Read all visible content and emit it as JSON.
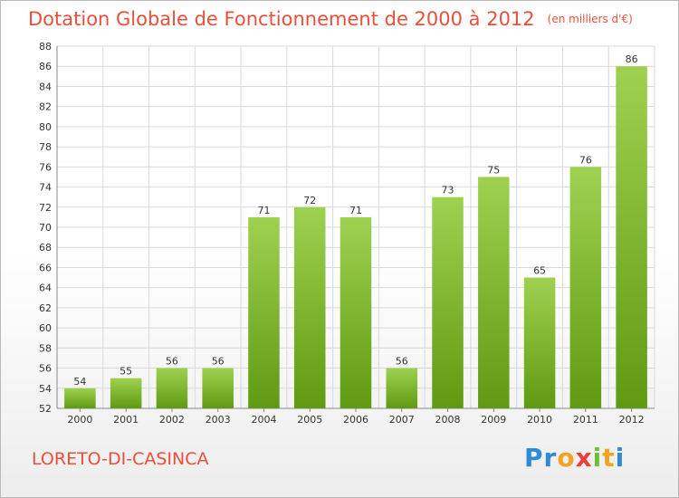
{
  "header": {
    "title": "Dotation Globale de Fonctionnement de 2000 à 2012",
    "subtitle": "(en milliers d'€)"
  },
  "footer": {
    "commune": "LORETO-DI-CASINCA",
    "logo": "Proxiti"
  },
  "colors": {
    "accent": "#e8503a",
    "bar_top": "#9fd150",
    "bar_bottom": "#5f9a12",
    "grid": "#d9d9d9"
  },
  "chart_data": {
    "type": "bar",
    "categories": [
      "2000",
      "2001",
      "2002",
      "2003",
      "2004",
      "2005",
      "2006",
      "2007",
      "2008",
      "2009",
      "2010",
      "2011",
      "2012"
    ],
    "values": [
      54,
      55,
      56,
      56,
      71,
      72,
      71,
      56,
      73,
      75,
      65,
      76,
      86
    ],
    "title": "Dotation Globale de Fonctionnement de 2000 à 2012",
    "subtitle": "(en milliers d'€)",
    "xlabel": "",
    "ylabel": "",
    "ylim": [
      52,
      88
    ],
    "yticks": [
      52,
      54,
      56,
      58,
      60,
      62,
      64,
      66,
      68,
      70,
      72,
      74,
      76,
      78,
      80,
      82,
      84,
      86,
      88
    ],
    "grid": true,
    "data_labels": true
  }
}
